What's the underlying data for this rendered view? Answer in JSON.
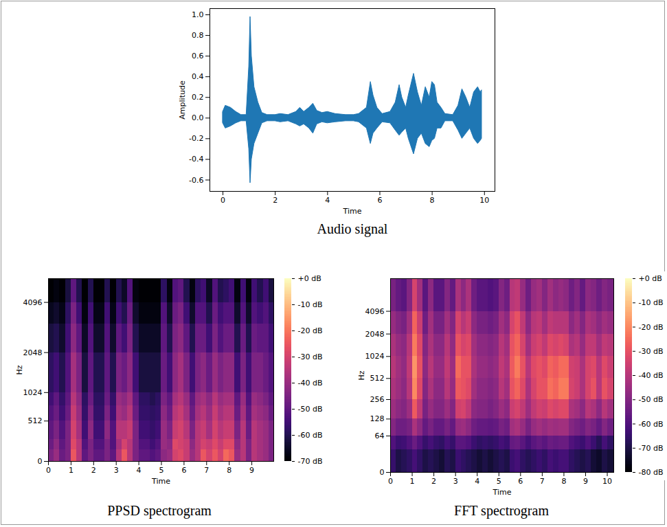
{
  "chart_data": [
    {
      "type": "area",
      "title": "Audio signal",
      "x_label": "Time",
      "y_label": "Amplitude",
      "color": "#1f77b4",
      "x": [
        0,
        0.1,
        0.3,
        0.5,
        0.7,
        0.9,
        1.0,
        1.05,
        1.1,
        1.2,
        1.35,
        1.5,
        1.7,
        2.0,
        2.2,
        2.5,
        2.8,
        2.95,
        3.1,
        3.3,
        3.45,
        3.6,
        3.8,
        4.0,
        4.3,
        4.7,
        5.0,
        5.2,
        5.5,
        5.65,
        5.75,
        5.9,
        6.1,
        6.4,
        6.6,
        6.75,
        6.85,
        7.0,
        7.1,
        7.3,
        7.45,
        7.6,
        7.75,
        7.9,
        8.0,
        8.1,
        8.2,
        8.35,
        8.5,
        8.8,
        9.0,
        9.15,
        9.3,
        9.45,
        9.6,
        9.75,
        9.85,
        9.9
      ],
      "y_max": [
        0.06,
        0.12,
        0.1,
        0.06,
        0.03,
        0.03,
        0.5,
        0.98,
        0.6,
        0.3,
        0.15,
        0.05,
        0.03,
        0.03,
        0.04,
        0.03,
        0.06,
        0.1,
        0.06,
        0.1,
        0.14,
        0.07,
        0.05,
        0.06,
        0.04,
        0.03,
        0.03,
        0.04,
        0.1,
        0.35,
        0.22,
        0.1,
        0.04,
        0.06,
        0.15,
        0.32,
        0.2,
        0.1,
        0.22,
        0.43,
        0.25,
        0.12,
        0.3,
        0.2,
        0.35,
        0.32,
        0.15,
        0.1,
        0.04,
        0.03,
        0.12,
        0.28,
        0.2,
        0.1,
        0.25,
        0.3,
        0.25,
        0.27
      ],
      "y_min": [
        -0.05,
        -0.1,
        -0.08,
        -0.05,
        -0.03,
        -0.03,
        -0.3,
        -0.63,
        -0.4,
        -0.25,
        -0.15,
        -0.05,
        -0.03,
        -0.03,
        -0.04,
        -0.03,
        -0.06,
        -0.08,
        -0.06,
        -0.1,
        -0.15,
        -0.06,
        -0.04,
        -0.05,
        -0.04,
        -0.03,
        -0.03,
        -0.04,
        -0.1,
        -0.25,
        -0.15,
        -0.1,
        -0.04,
        -0.05,
        -0.12,
        -0.17,
        -0.14,
        -0.1,
        -0.2,
        -0.35,
        -0.2,
        -0.15,
        -0.25,
        -0.28,
        -0.22,
        -0.2,
        -0.1,
        -0.1,
        -0.03,
        -0.03,
        -0.12,
        -0.2,
        -0.15,
        -0.1,
        -0.2,
        -0.25,
        -0.22,
        -0.2
      ],
      "xlim": [
        -0.5,
        10.4
      ],
      "xticks": [
        0,
        2,
        4,
        6,
        8,
        10
      ],
      "ylim": [
        -0.71,
        1.06
      ],
      "yticks": [
        -0.6,
        -0.4,
        -0.2,
        {
          "value": 0,
          "label": "0.0"
        },
        0.2,
        0.4,
        0.6,
        0.8,
        {
          "value": 1,
          "label": "1.0"
        }
      ]
    },
    {
      "type": "heatmap",
      "title": "PPSD spectrogram",
      "x_label": "Time",
      "y_label": "Hz",
      "color": "magma",
      "log": "y",
      "xlim": [
        0,
        9.97
      ],
      "xticks": [
        0,
        1,
        2,
        3,
        4,
        5,
        6,
        7,
        8,
        9
      ],
      "ylim": [
        0,
        5500
      ],
      "yticks": [
        0,
        512,
        1024,
        2048,
        4096
      ],
      "x_edges": [
        0,
        0.25,
        0.5,
        0.75,
        1,
        1.25,
        1.5,
        1.75,
        2,
        2.25,
        2.5,
        2.75,
        3,
        3.25,
        3.5,
        3.75,
        4,
        4.25,
        4.5,
        4.75,
        5,
        5.25,
        5.5,
        5.75,
        6,
        6.25,
        6.5,
        6.75,
        7,
        7.25,
        7.5,
        7.75,
        8,
        8.25,
        8.5,
        8.75,
        9,
        9.25,
        9.5,
        9.75,
        9.97
      ],
      "y_edges": [
        0,
        128,
        256,
        512,
        768,
        1024,
        2048,
        3072,
        4096,
        5500
      ],
      "values": [
        [
          -45,
          -40,
          -48,
          -45,
          -25,
          -35,
          -50,
          -45,
          -50,
          -50,
          -45,
          -50,
          -35,
          -25,
          -35,
          -45,
          -50,
          -50,
          -52,
          -50,
          -42,
          -40,
          -30,
          -28,
          -32,
          -40,
          -35,
          -25,
          -30,
          -25,
          -30,
          -22,
          -25,
          -40,
          -35,
          -45,
          -35,
          -38,
          -40,
          -45
        ],
        [
          -48,
          -42,
          -50,
          -45,
          -28,
          -35,
          -52,
          -45,
          -52,
          -52,
          -45,
          -52,
          -38,
          -30,
          -35,
          -45,
          -52,
          -52,
          -55,
          -52,
          -40,
          -42,
          -28,
          -30,
          -32,
          -42,
          -35,
          -30,
          -32,
          -28,
          -32,
          -28,
          -28,
          -42,
          -35,
          -45,
          -35,
          -38,
          -40,
          -45
        ],
        [
          -50,
          -45,
          -52,
          -45,
          -30,
          -38,
          -55,
          -42,
          -55,
          -55,
          -42,
          -52,
          -35,
          -35,
          -32,
          -45,
          -55,
          -55,
          -57,
          -55,
          -40,
          -45,
          -32,
          -30,
          -35,
          -45,
          -35,
          -32,
          -38,
          -30,
          -35,
          -32,
          -32,
          -45,
          -35,
          -48,
          -35,
          -38,
          -40,
          -45
        ],
        [
          -52,
          -48,
          -55,
          -48,
          -32,
          -40,
          -57,
          -45,
          -57,
          -57,
          -45,
          -55,
          -38,
          -40,
          -35,
          -48,
          -57,
          -57,
          -58,
          -57,
          -42,
          -48,
          -35,
          -32,
          -38,
          -48,
          -38,
          -35,
          -40,
          -32,
          -38,
          -35,
          -35,
          -48,
          -38,
          -50,
          -38,
          -40,
          -42,
          -48
        ],
        [
          -55,
          -50,
          -57,
          -50,
          -35,
          -42,
          -58,
          -48,
          -58,
          -58,
          -48,
          -57,
          -40,
          -42,
          -38,
          -50,
          -58,
          -58,
          -60,
          -58,
          -45,
          -50,
          -38,
          -35,
          -40,
          -50,
          -40,
          -38,
          -42,
          -35,
          -40,
          -38,
          -38,
          -50,
          -40,
          -52,
          -40,
          -42,
          -45,
          -50
        ],
        [
          -58,
          -55,
          -60,
          -52,
          -38,
          -45,
          -62,
          -50,
          -60,
          -60,
          -50,
          -60,
          -45,
          -48,
          -42,
          -55,
          -62,
          -62,
          -62,
          -62,
          -48,
          -55,
          -42,
          -38,
          -45,
          -55,
          -45,
          -42,
          -48,
          -40,
          -45,
          -42,
          -42,
          -55,
          -45,
          -55,
          -45,
          -45,
          -48,
          -52
        ],
        [
          -62,
          -60,
          -64,
          -55,
          -42,
          -50,
          -65,
          -52,
          -64,
          -64,
          -52,
          -64,
          -50,
          -55,
          -45,
          -60,
          -65,
          -65,
          -65,
          -65,
          -50,
          -60,
          -45,
          -42,
          -50,
          -60,
          -48,
          -48,
          -55,
          -45,
          -52,
          -48,
          -48,
          -60,
          -48,
          -60,
          -48,
          -50,
          -50,
          -55
        ],
        [
          -66,
          -64,
          -67,
          -58,
          -45,
          -55,
          -68,
          -55,
          -67,
          -67,
          -55,
          -67,
          -55,
          -60,
          -48,
          -64,
          -68,
          -68,
          -68,
          -68,
          -52,
          -64,
          -48,
          -45,
          -55,
          -64,
          -52,
          -52,
          -60,
          -48,
          -55,
          -52,
          -52,
          -64,
          -52,
          -64,
          -52,
          -55,
          -52,
          -58
        ],
        [
          -70,
          -68,
          -70,
          -62,
          -50,
          -60,
          -70,
          -60,
          -70,
          -70,
          -60,
          -70,
          -60,
          -65,
          -52,
          -68,
          -70,
          -70,
          -70,
          -70,
          -58,
          -68,
          -52,
          -50,
          -60,
          -68,
          -58,
          -55,
          -65,
          -52,
          -60,
          -58,
          -55,
          -68,
          -55,
          -68,
          -55,
          -60,
          -55,
          -62
        ]
      ],
      "color_range": [
        -70,
        0
      ],
      "color_ticks": [
        {
          "value": 0,
          "label": "+0 dB"
        },
        {
          "value": -10,
          "label": "-10 dB"
        },
        {
          "value": -20,
          "label": "-20 dB"
        },
        {
          "value": -30,
          "label": "-30 dB"
        },
        {
          "value": -40,
          "label": "-40 dB"
        },
        {
          "value": -50,
          "label": "-50 dB"
        },
        {
          "value": -60,
          "label": "-60 dB"
        },
        {
          "value": -70,
          "label": "-70 dB"
        }
      ]
    },
    {
      "type": "heatmap",
      "title": "FFT spectrogram",
      "x_label": "Time",
      "y_label": "Hz",
      "color": "magma",
      "log": "y",
      "xlim": [
        0,
        10.3
      ],
      "xticks": [
        0,
        1,
        2,
        3,
        4,
        5,
        6,
        7,
        8,
        9,
        10
      ],
      "ylim": [
        0,
        11025
      ],
      "yticks": [
        0,
        64,
        128,
        256,
        512,
        1024,
        2048,
        4096
      ],
      "x_edges": [
        0,
        0.25,
        0.5,
        0.75,
        1,
        1.25,
        1.5,
        1.75,
        2,
        2.25,
        2.5,
        2.75,
        3,
        3.25,
        3.5,
        3.75,
        4,
        4.25,
        4.5,
        4.75,
        5,
        5.25,
        5.5,
        5.75,
        6,
        6.25,
        6.5,
        6.75,
        7,
        7.25,
        7.5,
        7.75,
        8,
        8.25,
        8.5,
        8.75,
        9,
        9.25,
        9.5,
        9.75,
        10,
        10.3
      ],
      "y_edges": [
        0,
        32,
        64,
        128,
        256,
        512,
        1024,
        2048,
        4096,
        11025
      ],
      "values": [
        [
          -65,
          -70,
          -68,
          -66,
          -62,
          -66,
          -70,
          -68,
          -70,
          -72,
          -68,
          -70,
          -64,
          -66,
          -68,
          -70,
          -72,
          -70,
          -72,
          -70,
          -68,
          -70,
          -64,
          -62,
          -66,
          -68,
          -66,
          -64,
          -66,
          -62,
          -64,
          -62,
          -62,
          -66,
          -68,
          -70,
          -68,
          -72,
          -74,
          -70,
          -72
        ],
        [
          -60,
          -64,
          -63,
          -60,
          -55,
          -60,
          -65,
          -62,
          -65,
          -66,
          -62,
          -65,
          -58,
          -58,
          -60,
          -64,
          -66,
          -65,
          -66,
          -65,
          -62,
          -64,
          -56,
          -55,
          -58,
          -62,
          -58,
          -56,
          -58,
          -55,
          -56,
          -55,
          -55,
          -60,
          -62,
          -64,
          -60,
          -64,
          -68,
          -62,
          -66
        ],
        [
          -50,
          -54,
          -54,
          -52,
          -42,
          -48,
          -56,
          -52,
          -56,
          -56,
          -52,
          -56,
          -46,
          -45,
          -48,
          -54,
          -56,
          -56,
          -57,
          -56,
          -52,
          -54,
          -44,
          -42,
          -46,
          -52,
          -46,
          -44,
          -46,
          -44,
          -45,
          -44,
          -44,
          -50,
          -52,
          -54,
          -50,
          -52,
          -56,
          -50,
          -54
        ],
        [
          -45,
          -48,
          -50,
          -45,
          -28,
          -38,
          -52,
          -46,
          -50,
          -50,
          -45,
          -50,
          -35,
          -34,
          -38,
          -48,
          -50,
          -50,
          -52,
          -50,
          -45,
          -48,
          -36,
          -34,
          -38,
          -45,
          -38,
          -35,
          -36,
          -32,
          -34,
          -32,
          -32,
          -42,
          -44,
          -48,
          -40,
          -42,
          -48,
          -40,
          -44
        ],
        [
          -42,
          -45,
          -48,
          -40,
          -20,
          -32,
          -50,
          -42,
          -48,
          -48,
          -40,
          -46,
          -28,
          -30,
          -32,
          -44,
          -48,
          -48,
          -50,
          -48,
          -40,
          -44,
          -30,
          -26,
          -32,
          -42,
          -34,
          -30,
          -30,
          -24,
          -26,
          -22,
          -22,
          -34,
          -36,
          -42,
          -34,
          -30,
          -40,
          -30,
          -34
        ],
        [
          -40,
          -44,
          -47,
          -38,
          -18,
          -30,
          -48,
          -40,
          -46,
          -46,
          -38,
          -45,
          -25,
          -30,
          -30,
          -42,
          -46,
          -46,
          -48,
          -46,
          -38,
          -42,
          -28,
          -22,
          -30,
          -40,
          -32,
          -30,
          -32,
          -26,
          -28,
          -25,
          -25,
          -35,
          -36,
          -42,
          -34,
          -32,
          -40,
          -32,
          -36
        ],
        [
          -42,
          -46,
          -48,
          -40,
          -22,
          -32,
          -50,
          -42,
          -48,
          -48,
          -40,
          -47,
          -30,
          -34,
          -32,
          -44,
          -48,
          -48,
          -50,
          -48,
          -40,
          -44,
          -30,
          -26,
          -34,
          -44,
          -36,
          -34,
          -38,
          -32,
          -34,
          -32,
          -34,
          -42,
          -40,
          -46,
          -38,
          -38,
          -44,
          -38,
          -40
        ],
        [
          -46,
          -50,
          -52,
          -44,
          -26,
          -36,
          -54,
          -44,
          -52,
          -52,
          -44,
          -50,
          -34,
          -40,
          -36,
          -48,
          -52,
          -52,
          -54,
          -52,
          -44,
          -48,
          -34,
          -30,
          -38,
          -48,
          -40,
          -38,
          -44,
          -38,
          -40,
          -40,
          -40,
          -48,
          -44,
          -50,
          -42,
          -44,
          -48,
          -44,
          -46
        ],
        [
          -52,
          -56,
          -58,
          -50,
          -34,
          -44,
          -58,
          -48,
          -58,
          -58,
          -50,
          -56,
          -42,
          -48,
          -42,
          -54,
          -58,
          -58,
          -60,
          -58,
          -50,
          -54,
          -40,
          -38,
          -46,
          -54,
          -46,
          -44,
          -50,
          -44,
          -48,
          -46,
          -48,
          -54,
          -50,
          -56,
          -48,
          -50,
          -54,
          -50,
          -52
        ]
      ],
      "color_range": [
        -80,
        0
      ],
      "color_ticks": [
        {
          "value": 0,
          "label": "+0 dB"
        },
        {
          "value": -10,
          "label": "-10 dB"
        },
        {
          "value": -20,
          "label": "-20 dB"
        },
        {
          "value": -30,
          "label": "-30 dB"
        },
        {
          "value": -40,
          "label": "-40 dB"
        },
        {
          "value": -50,
          "label": "-50 dB"
        },
        {
          "value": -60,
          "label": "-60 dB"
        },
        {
          "value": -70,
          "label": "-70 dB"
        },
        {
          "value": -80,
          "label": "-80 dB"
        }
      ]
    }
  ]
}
